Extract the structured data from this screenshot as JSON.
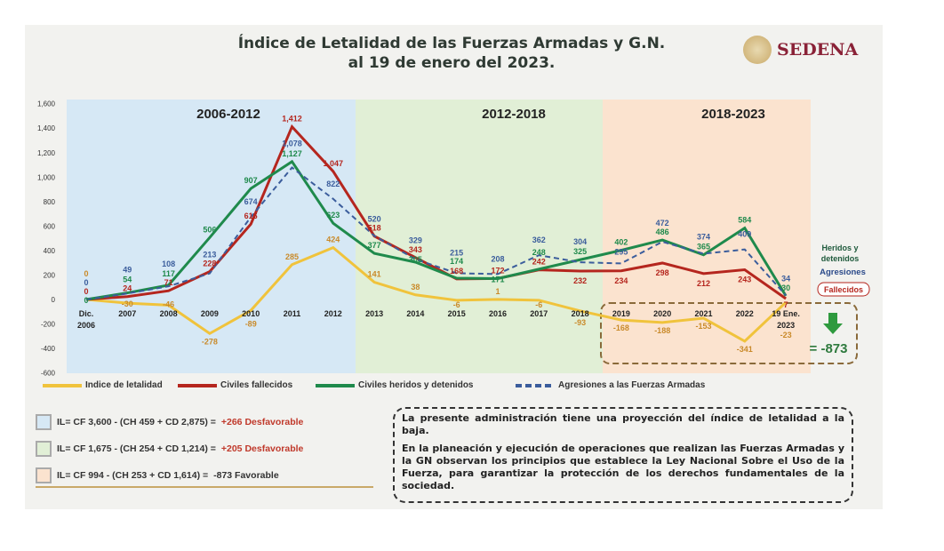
{
  "title_line1": "Índice de Letalidad de las Fuerzas Armadas y G.N.",
  "title_line2": "al 19 de enero del 2023.",
  "logo": "SEDENA",
  "chart_data": {
    "type": "line",
    "categories": [
      "Dic. 2006",
      "2007",
      "2008",
      "2009",
      "2010",
      "2011",
      "2012",
      "2013",
      "2014",
      "2015",
      "2016",
      "2017",
      "2018",
      "2019",
      "2020",
      "2021",
      "2022",
      "19 Ene. 2023"
    ],
    "ylim": [
      -600,
      1600
    ],
    "yticks": [
      "-600",
      "-400",
      "-200",
      "0",
      "200",
      "400",
      "600",
      "800",
      "1,000",
      "1,200",
      "1,400",
      "1,600"
    ],
    "periods": [
      {
        "label": "2006-2012",
        "color": "#d6e8f5"
      },
      {
        "label": "2012-2018",
        "color": "#e1efd6"
      },
      {
        "label": "2018-2023",
        "color": "#fbe3cf"
      }
    ],
    "series": [
      {
        "name": "Indice de letalidad",
        "color": "#f0c33c",
        "dash": false,
        "values": [
          0,
          -30,
          -46,
          -278,
          -89,
          285,
          424,
          141,
          38,
          -6,
          1,
          -6,
          -93,
          -168,
          -188,
          -153,
          -341,
          -23
        ]
      },
      {
        "name": "Civiles fallecidos",
        "color": "#b5261e",
        "dash": false,
        "values": [
          0,
          24,
          71,
          228,
          616,
          1412,
          1047,
          518,
          343,
          168,
          172,
          242,
          232,
          234,
          298,
          212,
          243,
          7
        ]
      },
      {
        "name": "Civiles heridos y detenidos",
        "color": "#1f8a4c",
        "dash": false,
        "values": [
          0,
          54,
          117,
          506,
          907,
          1127,
          623,
          377,
          305,
          174,
          171,
          248,
          325,
          402,
          486,
          365,
          584,
          30
        ]
      },
      {
        "name": "Agresiones a las Fuerzas Armadas",
        "color": "#3b5d9c",
        "dash": true,
        "values": [
          0,
          49,
          108,
          213,
          674,
          1078,
          822,
          520,
          329,
          215,
          208,
          362,
          304,
          295,
          472,
          374,
          409,
          34
        ]
      }
    ],
    "side_labels": {
      "heridos": "Heridos y detenidos",
      "agresiones": "Agresiones",
      "fallecidos": "Fallecidos"
    },
    "total": "= -873"
  },
  "formulas": [
    {
      "text": "IL= CF 3,600 - (CH 459 + CD 2,875) = ",
      "result": "+266  Desfavorable",
      "color": "#d6e8f5",
      "bad": true
    },
    {
      "text": "IL= CF 1,675 - (CH 254 + CD 1,214) = ",
      "result": "+205  Desfavorable",
      "color": "#e1efd6",
      "bad": true
    },
    {
      "text": "IL= CF 994 - (CH 253 + CD 1,614) = ",
      "result": "-873 Favorable",
      "color": "#fbe3cf",
      "bad": false
    }
  ],
  "note": {
    "p1": "La presente administración tiene una proyección del índice de letalidad a la baja.",
    "p2": "En la planeación y ejecución de operaciones que realizan las Fuerzas Armadas y la GN observan los principios que establece la Ley Nacional Sobre el Uso de la Fuerza, para garantizar la protección de los derechos fundamentales de la sociedad."
  }
}
